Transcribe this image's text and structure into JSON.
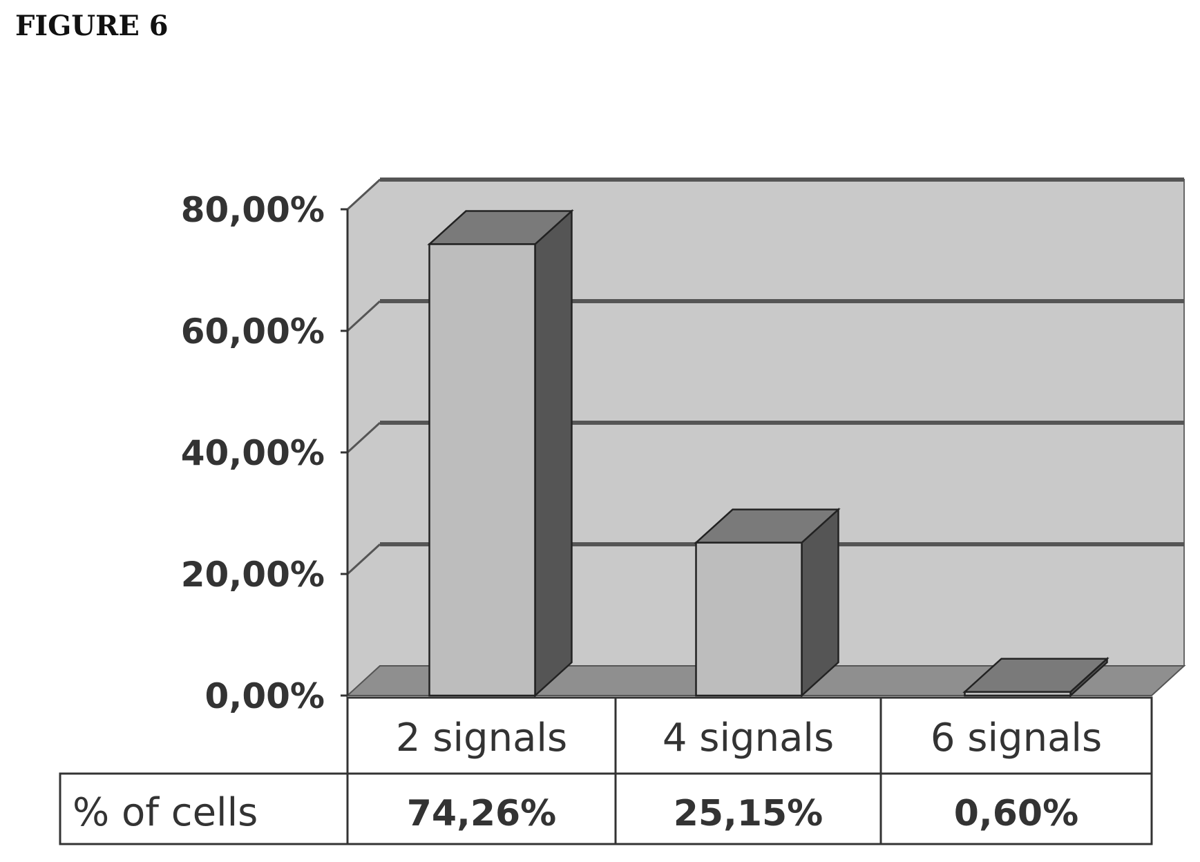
{
  "figure_label": "FIGURE 6",
  "chart_data": {
    "type": "bar",
    "title": "",
    "xlabel": "",
    "ylabel": "",
    "categories": [
      "2 signals",
      "4 signals",
      "6 signals"
    ],
    "series": [
      {
        "name": "% of cells",
        "values": [
          74.26,
          25.15,
          0.6
        ]
      }
    ],
    "value_labels": [
      "74,26%",
      "25,15%",
      "0,60%"
    ],
    "ylim": [
      0,
      80
    ],
    "yticks": [
      0,
      20,
      40,
      60,
      80
    ],
    "ytick_labels": [
      "0,00%",
      "20,00%",
      "40,00%",
      "60,00%",
      "80,00%"
    ],
    "grid": true,
    "style": "3d-column with data table below",
    "colors": {
      "wall": "#c9c9c9",
      "floor": "#8f8f8f",
      "bar_front": "#bdbdbd",
      "bar_side": "#555555",
      "bar_top": "#7a7a7a",
      "gridline": "#555555"
    }
  }
}
